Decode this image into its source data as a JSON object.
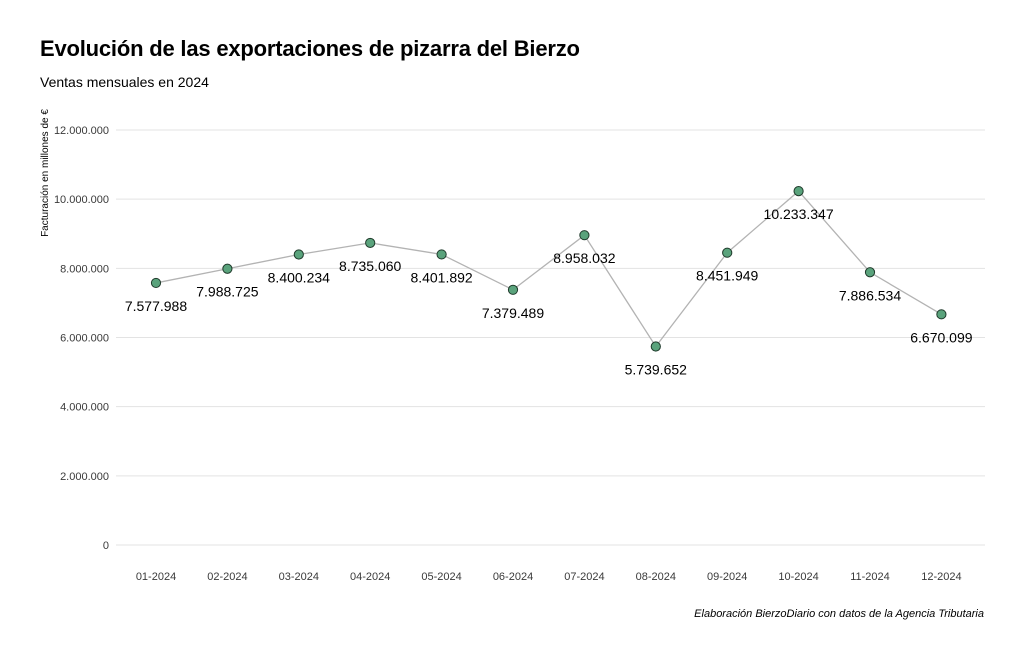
{
  "title": "Evolución de las exportaciones de pizarra del Bierzo",
  "subtitle": "Ventas mensuales en 2024",
  "caption": "Elaboración BierzoDiario con datos de la Agencia Tributaria",
  "colors": {
    "point": "#5aa37c",
    "line": "#b3b3b3",
    "grid": "#e3e3e3"
  },
  "chart_data": {
    "type": "line",
    "title": "Evolución de las exportaciones de pizarra del Bierzo",
    "subtitle": "Ventas mensuales en 2024",
    "xlabel": "",
    "ylabel": "Facturación en millones de €",
    "categories": [
      "01-2024",
      "02-2024",
      "03-2024",
      "04-2024",
      "05-2024",
      "06-2024",
      "07-2024",
      "08-2024",
      "09-2024",
      "10-2024",
      "11-2024",
      "12-2024"
    ],
    "values": [
      7577988,
      7988725,
      8400234,
      8735060,
      8401892,
      7379489,
      8958032,
      5739652,
      8451949,
      10233347,
      7886534,
      6670099
    ],
    "value_labels": [
      "7.577.988",
      "7.988.725",
      "8.400.234",
      "8.735.060",
      "8.401.892",
      "7.379.489",
      "8.958.032",
      "5.739.652",
      "8.451.949",
      "10.233.347",
      "7.886.534",
      "6.670.099"
    ],
    "label_position": [
      "below",
      "below",
      "below",
      "below",
      "below",
      "below",
      "below",
      "below",
      "below",
      "below",
      "below",
      "below"
    ],
    "yticks": [
      0,
      2000000,
      4000000,
      6000000,
      8000000,
      10000000,
      12000000
    ],
    "ytick_labels": [
      "0",
      "2.000.000",
      "4.000.000",
      "6.000.000",
      "8.000.000",
      "10.000.000",
      "12.000.000"
    ],
    "ylim": [
      0,
      12000000
    ],
    "grid": "horizontal",
    "legend": "none"
  }
}
